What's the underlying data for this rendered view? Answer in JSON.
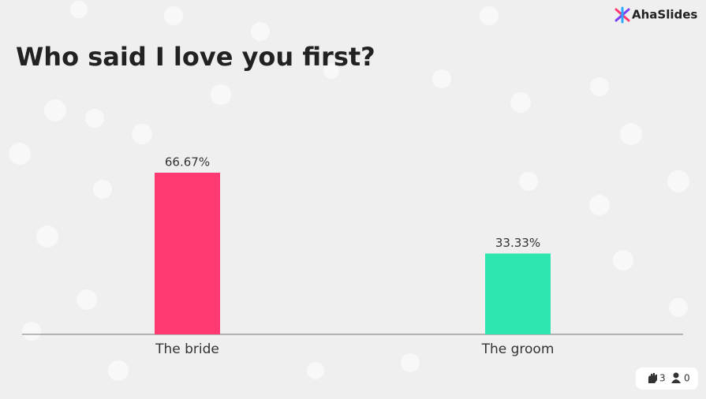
{
  "brand": "AhaSlides",
  "counters": {
    "reactions": "3",
    "participants": "0"
  },
  "chart_data": {
    "type": "bar",
    "title": "Who said I love you first?",
    "categories": [
      "The bride",
      "The groom"
    ],
    "values": [
      66.67,
      33.33
    ],
    "value_labels": [
      "66.67%",
      "33.33%"
    ],
    "colors": [
      "#ff3a72",
      "#2ee6b0"
    ]
  }
}
